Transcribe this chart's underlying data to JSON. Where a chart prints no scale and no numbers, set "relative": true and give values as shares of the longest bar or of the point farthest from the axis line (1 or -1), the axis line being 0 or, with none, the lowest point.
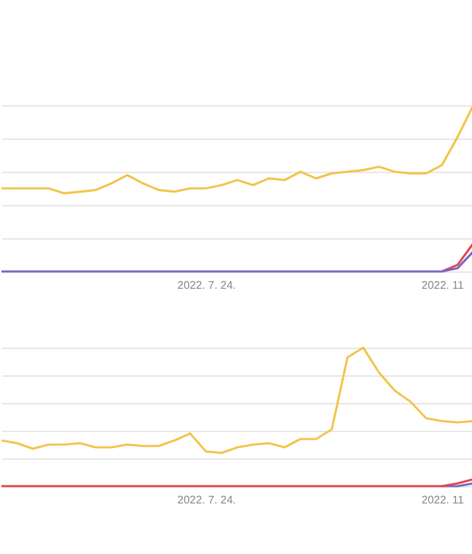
{
  "chart_data": [
    {
      "type": "line",
      "relative": true,
      "grid": "y",
      "legend": false,
      "categories": [
        null,
        null,
        null,
        null,
        null,
        null,
        null,
        null,
        null,
        null,
        null,
        null,
        null,
        "2022. 7. 24.",
        null,
        null,
        null,
        null,
        null,
        null,
        null,
        null,
        null,
        null,
        null,
        null,
        null,
        null,
        "2022. 11",
        null,
        null
      ],
      "series": [
        {
          "color": "#f2c44a",
          "values": [
            0.5,
            0.5,
            0.5,
            0.5,
            0.47,
            0.48,
            0.49,
            0.53,
            0.58,
            0.53,
            0.49,
            0.48,
            0.5,
            0.5,
            0.52,
            0.55,
            0.52,
            0.56,
            0.55,
            0.6,
            0.56,
            0.59,
            0.6,
            0.61,
            0.63,
            0.6,
            0.59,
            0.59,
            0.64,
            0.81,
            1
          ]
        },
        {
          "color": "#e0464e",
          "values": [
            null,
            null,
            null,
            null,
            null,
            null,
            null,
            null,
            null,
            null,
            null,
            null,
            null,
            null,
            null,
            null,
            null,
            null,
            null,
            null,
            null,
            null,
            null,
            null,
            null,
            null,
            null,
            null,
            0,
            0.04,
            0.17
          ]
        },
        {
          "color": "#7a64c8",
          "values": [
            0,
            0,
            0,
            0,
            0,
            0,
            0,
            0,
            0,
            0,
            0,
            0,
            0,
            0,
            0,
            0,
            0,
            0,
            0,
            0,
            0,
            0,
            0,
            0,
            0,
            0,
            0,
            0,
            0,
            0.02,
            0.12
          ]
        }
      ]
    },
    {
      "type": "line",
      "relative": true,
      "grid": "y",
      "legend": false,
      "categories": [
        null,
        null,
        null,
        null,
        null,
        null,
        null,
        null,
        null,
        null,
        null,
        null,
        null,
        "2022. 7. 24.",
        null,
        null,
        null,
        null,
        null,
        null,
        null,
        null,
        null,
        null,
        null,
        null,
        null,
        null,
        "2022. 11",
        null,
        null
      ],
      "series": [
        {
          "color": "#f2c44a",
          "values": [
            0.33,
            0.31,
            0.27,
            0.3,
            0.3,
            0.31,
            0.28,
            0.28,
            0.3,
            0.29,
            0.29,
            0.33,
            0.38,
            0.25,
            0.24,
            0.28,
            0.3,
            0.31,
            0.28,
            0.34,
            0.34,
            0.41,
            0.93,
            1,
            0.82,
            0.69,
            0.61,
            0.49,
            0.47,
            0.46,
            0.47
          ]
        },
        {
          "color": "#7a64c8",
          "values": [
            null,
            null,
            null,
            null,
            null,
            null,
            null,
            null,
            null,
            null,
            null,
            null,
            null,
            null,
            null,
            null,
            null,
            null,
            null,
            null,
            null,
            null,
            null,
            null,
            null,
            null,
            null,
            null,
            0,
            0,
            0.02
          ]
        },
        {
          "color": "#e0464e",
          "values": [
            0,
            0,
            0,
            0,
            0,
            0,
            0,
            0,
            0,
            0,
            0,
            0,
            0,
            0,
            0,
            0,
            0,
            0,
            0,
            0,
            0,
            0,
            0,
            0,
            0,
            0,
            0,
            0,
            0,
            0.02,
            0.05
          ]
        }
      ]
    }
  ]
}
